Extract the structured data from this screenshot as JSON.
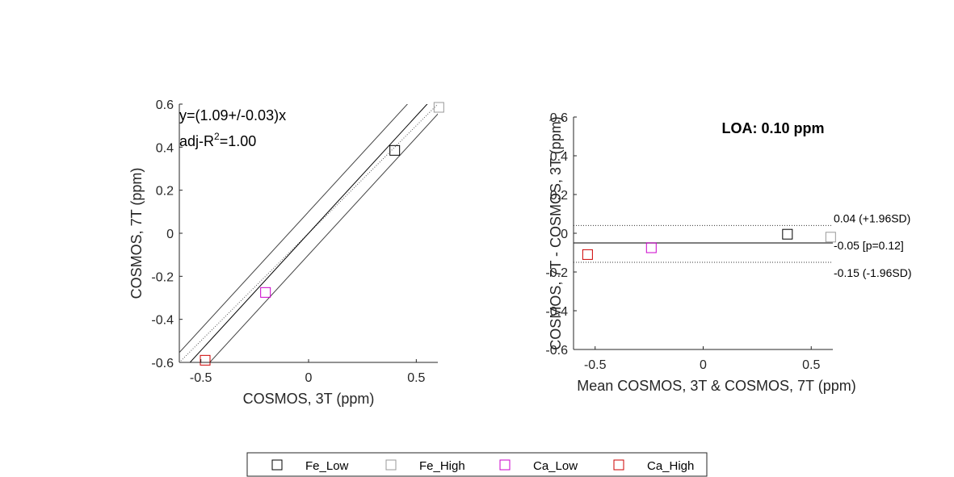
{
  "chart_data": [
    {
      "type": "scatter",
      "xlabel": "COSMOS, 3T (ppm)",
      "ylabel": "COSMOS, 7T (ppm)",
      "xlim": [
        -0.6,
        0.6
      ],
      "ylim": [
        -0.6,
        0.6
      ],
      "xticks": [
        -0.5,
        0,
        0.5
      ],
      "xtick_labels": [
        "-0.5",
        "0",
        "0.5"
      ],
      "yticks": [
        -0.6,
        -0.4,
        -0.2,
        0,
        0.2,
        0.4,
        0.6
      ],
      "ytick_labels": [
        "-0.6",
        "-0.4",
        "-0.2",
        "0",
        "0.2",
        "0.4",
        "0.6"
      ],
      "points": [
        {
          "series": "Fe_Low",
          "x": 0.4,
          "y": 0.385
        },
        {
          "series": "Fe_High",
          "x": 0.605,
          "y": 0.585
        },
        {
          "series": "Ca_Low",
          "x": -0.2,
          "y": -0.275
        },
        {
          "series": "Ca_High",
          "x": -0.48,
          "y": -0.59
        }
      ],
      "fit": {
        "slope": 1.09
      },
      "identity_line": true,
      "bounds_offset": 0.1,
      "annotation_eq": "y=(1.09+/-0.03)x",
      "annotation_r2_prefix": "adj-R",
      "annotation_r2_sup": "2",
      "annotation_r2_suffix": "=1.00"
    },
    {
      "type": "scatter",
      "title": "LOA: 0.10 ppm",
      "xlabel": "Mean COSMOS, 3T & COSMOS, 7T (ppm)",
      "ylabel": "COSMOS, 7T - COSMOS, 3T (ppm)",
      "xlim": [
        -0.6,
        0.6
      ],
      "ylim": [
        -0.6,
        0.6
      ],
      "xticks": [
        -0.5,
        0,
        0.5
      ],
      "xtick_labels": [
        "-0.5",
        "0",
        "0.5"
      ],
      "yticks": [
        -0.6,
        -0.4,
        -0.2,
        0,
        0.2,
        0.4,
        0.6
      ],
      "ytick_labels": [
        "-0.6",
        "-0.4",
        "-0.2",
        "0",
        "0.2",
        "0.4",
        "0.6"
      ],
      "points": [
        {
          "series": "Fe_Low",
          "x": 0.39,
          "y": -0.005
        },
        {
          "series": "Fe_High",
          "x": 0.59,
          "y": -0.02
        },
        {
          "series": "Ca_Low",
          "x": -0.24,
          "y": -0.075
        },
        {
          "series": "Ca_High",
          "x": -0.535,
          "y": -0.11
        }
      ],
      "mean_line": -0.05,
      "upper_loa": 0.04,
      "lower_loa": -0.15,
      "upper_label": "0.04 (+1.96SD)",
      "mean_label": "-0.05 [p=0.12]",
      "lower_label": "-0.15 (-1.96SD)"
    }
  ],
  "legend": {
    "items": [
      {
        "name": "Fe_Low",
        "color": "#000000"
      },
      {
        "name": "Fe_High",
        "color": "#999999"
      },
      {
        "name": "Ca_Low",
        "color": "#cc00cc"
      },
      {
        "name": "Ca_High",
        "color": "#cc0000"
      }
    ]
  }
}
